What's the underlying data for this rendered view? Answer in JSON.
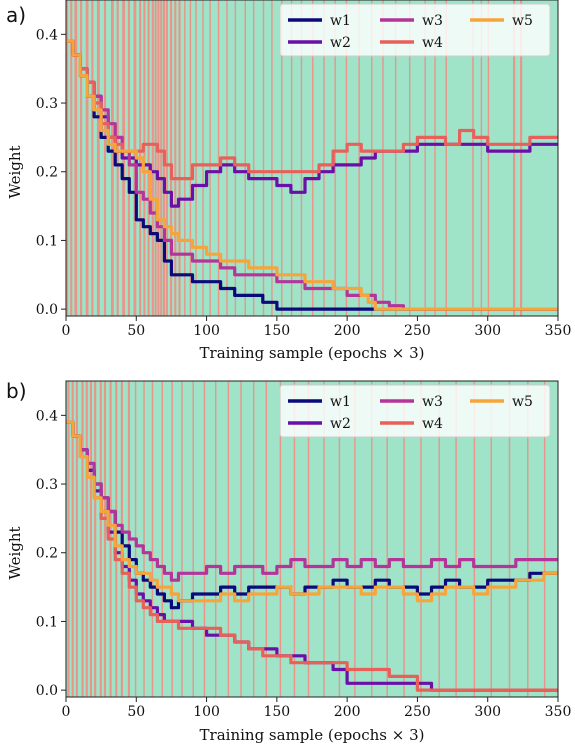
{
  "chart_data": [
    {
      "type": "line",
      "panel_label": "a)",
      "xlabel": "Training sample (epochs × 3)",
      "ylabel": "Weight",
      "xlim": [
        0,
        350
      ],
      "ylim": [
        -0.01,
        0.45
      ],
      "xticks": [
        0,
        50,
        100,
        150,
        200,
        250,
        300,
        350
      ],
      "yticks": [
        0.0,
        0.1,
        0.2,
        0.3,
        0.4
      ],
      "ytick_labels": [
        "0.0",
        "0.1",
        "0.2",
        "0.3",
        "0.4"
      ],
      "legend_position": "top-right",
      "background_colors": {
        "band_a": "#9fe3c9",
        "band_b": "#f5877f"
      },
      "background_band_b_starts": [
        0,
        3,
        6,
        10,
        14,
        18,
        22,
        27,
        32,
        36,
        40,
        44,
        48,
        52,
        55,
        58,
        61,
        63,
        65,
        67,
        69,
        71,
        74,
        77,
        80,
        84,
        88,
        92,
        97,
        102,
        108,
        114,
        120,
        127,
        133,
        140,
        146,
        153,
        160,
        167,
        175,
        183,
        191,
        199,
        208,
        217,
        225,
        234,
        244,
        255,
        262,
        270,
        289,
        295,
        300,
        318,
        323
      ],
      "background_band_b_widths": [
        1.5,
        1.5,
        2,
        1.5,
        2,
        1.5,
        2,
        1.5,
        2,
        1.5,
        2,
        1.5,
        2,
        1.5,
        1.5,
        1.5,
        1.5,
        1.5,
        1.5,
        1.5,
        1.5,
        1.5,
        1.5,
        1.5,
        1.5,
        1,
        1,
        1,
        1,
        1,
        1,
        1,
        1,
        1,
        1,
        1,
        1,
        1,
        1,
        1,
        1,
        1,
        1,
        1,
        1,
        1,
        1,
        1,
        1,
        1,
        1,
        1,
        1,
        1,
        1,
        1.5,
        1.5
      ],
      "series": [
        {
          "name": "w1",
          "color": "#0a0a7a",
          "x": [
            0,
            5,
            10,
            15,
            20,
            25,
            30,
            35,
            40,
            45,
            50,
            55,
            60,
            65,
            70,
            75,
            80,
            90,
            100,
            110,
            120,
            130,
            140,
            150,
            200,
            350
          ],
          "y": [
            0.39,
            0.37,
            0.34,
            0.31,
            0.28,
            0.25,
            0.23,
            0.21,
            0.19,
            0.17,
            0.13,
            0.12,
            0.11,
            0.1,
            0.07,
            0.05,
            0.05,
            0.04,
            0.04,
            0.03,
            0.02,
            0.02,
            0.01,
            0.0,
            0.0,
            0.0
          ]
        },
        {
          "name": "w2",
          "color": "#6a0fa8",
          "x": [
            0,
            5,
            10,
            15,
            20,
            25,
            30,
            35,
            40,
            45,
            50,
            55,
            60,
            65,
            70,
            75,
            80,
            90,
            100,
            110,
            120,
            130,
            140,
            150,
            160,
            170,
            180,
            190,
            200,
            210,
            220,
            230,
            240,
            250,
            260,
            270,
            280,
            290,
            300,
            310,
            320,
            330,
            340,
            350
          ],
          "y": [
            0.39,
            0.37,
            0.35,
            0.33,
            0.31,
            0.28,
            0.25,
            0.23,
            0.22,
            0.22,
            0.21,
            0.21,
            0.2,
            0.19,
            0.17,
            0.15,
            0.16,
            0.18,
            0.2,
            0.21,
            0.2,
            0.19,
            0.19,
            0.18,
            0.17,
            0.19,
            0.2,
            0.21,
            0.21,
            0.22,
            0.23,
            0.23,
            0.23,
            0.24,
            0.24,
            0.24,
            0.24,
            0.24,
            0.23,
            0.23,
            0.23,
            0.24,
            0.24,
            0.24
          ]
        },
        {
          "name": "w3",
          "color": "#b4359a",
          "x": [
            0,
            5,
            10,
            15,
            20,
            25,
            30,
            35,
            40,
            45,
            50,
            55,
            60,
            65,
            70,
            75,
            80,
            90,
            100,
            110,
            120,
            130,
            140,
            150,
            160,
            170,
            180,
            190,
            200,
            210,
            220,
            230,
            240,
            350
          ],
          "y": [
            0.39,
            0.37,
            0.35,
            0.33,
            0.31,
            0.29,
            0.27,
            0.25,
            0.23,
            0.21,
            0.17,
            0.16,
            0.14,
            0.12,
            0.1,
            0.08,
            0.08,
            0.07,
            0.07,
            0.06,
            0.05,
            0.05,
            0.05,
            0.04,
            0.04,
            0.03,
            0.03,
            0.03,
            0.02,
            0.02,
            0.01,
            0.005,
            0.0,
            0.0
          ]
        },
        {
          "name": "w4",
          "color": "#e8605a",
          "x": [
            0,
            5,
            10,
            15,
            20,
            25,
            30,
            35,
            40,
            45,
            50,
            55,
            60,
            65,
            70,
            75,
            80,
            90,
            100,
            110,
            120,
            130,
            140,
            150,
            160,
            170,
            180,
            190,
            200,
            210,
            220,
            230,
            240,
            250,
            260,
            270,
            280,
            290,
            300,
            310,
            320,
            330,
            340,
            350
          ],
          "y": [
            0.39,
            0.37,
            0.35,
            0.33,
            0.3,
            0.27,
            0.25,
            0.24,
            0.23,
            0.23,
            0.23,
            0.24,
            0.24,
            0.23,
            0.21,
            0.19,
            0.19,
            0.21,
            0.21,
            0.22,
            0.21,
            0.2,
            0.2,
            0.2,
            0.2,
            0.2,
            0.21,
            0.23,
            0.24,
            0.23,
            0.23,
            0.23,
            0.24,
            0.25,
            0.25,
            0.24,
            0.26,
            0.25,
            0.24,
            0.24,
            0.24,
            0.25,
            0.25,
            0.25
          ]
        },
        {
          "name": "w5",
          "color": "#f5a53a",
          "x": [
            0,
            5,
            10,
            15,
            20,
            25,
            30,
            35,
            40,
            45,
            50,
            55,
            60,
            65,
            70,
            75,
            80,
            90,
            100,
            110,
            120,
            130,
            140,
            150,
            160,
            170,
            180,
            190,
            200,
            210,
            215,
            220,
            350
          ],
          "y": [
            0.39,
            0.37,
            0.34,
            0.31,
            0.29,
            0.26,
            0.24,
            0.23,
            0.23,
            0.23,
            0.22,
            0.2,
            0.16,
            0.13,
            0.12,
            0.11,
            0.1,
            0.09,
            0.08,
            0.07,
            0.07,
            0.06,
            0.06,
            0.05,
            0.05,
            0.04,
            0.04,
            0.03,
            0.03,
            0.02,
            0.01,
            0.0,
            0.0
          ]
        }
      ]
    },
    {
      "type": "line",
      "panel_label": "b)",
      "xlabel": "Training sample (epochs × 3)",
      "ylabel": "Weight",
      "xlim": [
        0,
        350
      ],
      "ylim": [
        -0.01,
        0.45
      ],
      "xticks": [
        0,
        50,
        100,
        150,
        200,
        250,
        300,
        350
      ],
      "yticks": [
        0.0,
        0.1,
        0.2,
        0.3,
        0.4
      ],
      "ytick_labels": [
        "0.0",
        "0.1",
        "0.2",
        "0.3",
        "0.4"
      ],
      "legend_position": "top-right",
      "background_colors": {
        "band_a": "#9fe3c9",
        "band_b": "#f5877f"
      },
      "background_band_b_starts": [
        1,
        4,
        7,
        11,
        14,
        17,
        20,
        24,
        27,
        31,
        35,
        39,
        44,
        49,
        55,
        61,
        68,
        75,
        82,
        90,
        98,
        106,
        115,
        124,
        133,
        142,
        152,
        162,
        172,
        183,
        194,
        205,
        217,
        228,
        240,
        252,
        265,
        277,
        290,
        302,
        315,
        328,
        340
      ],
      "background_band_b_widths": [
        1.5,
        1.5,
        1.5,
        1.5,
        1.5,
        1.5,
        1.5,
        1.5,
        1.5,
        1.5,
        1.5,
        1.5,
        1.5,
        1,
        1,
        1,
        1,
        1,
        1,
        1,
        1,
        1,
        1,
        1,
        1,
        1,
        1,
        1,
        1,
        1,
        1,
        1,
        1,
        1,
        1,
        1,
        1,
        1,
        1,
        1,
        1,
        1,
        1
      ],
      "series": [
        {
          "name": "w1",
          "color": "#0a0a7a",
          "x": [
            0,
            5,
            10,
            15,
            20,
            25,
            30,
            35,
            40,
            45,
            50,
            55,
            60,
            65,
            70,
            75,
            80,
            90,
            100,
            110,
            120,
            130,
            140,
            150,
            160,
            170,
            180,
            190,
            200,
            210,
            220,
            230,
            240,
            250,
            260,
            270,
            280,
            290,
            300,
            310,
            320,
            330,
            340,
            350
          ],
          "y": [
            0.39,
            0.37,
            0.35,
            0.32,
            0.3,
            0.28,
            0.26,
            0.23,
            0.21,
            0.19,
            0.17,
            0.16,
            0.15,
            0.14,
            0.13,
            0.12,
            0.13,
            0.14,
            0.14,
            0.15,
            0.14,
            0.15,
            0.15,
            0.15,
            0.14,
            0.15,
            0.15,
            0.16,
            0.15,
            0.15,
            0.16,
            0.15,
            0.15,
            0.14,
            0.15,
            0.16,
            0.15,
            0.15,
            0.16,
            0.16,
            0.16,
            0.17,
            0.17,
            0.17
          ]
        },
        {
          "name": "w2",
          "color": "#6a0fa8",
          "x": [
            0,
            5,
            10,
            15,
            20,
            25,
            30,
            35,
            40,
            45,
            50,
            55,
            60,
            65,
            70,
            75,
            80,
            90,
            100,
            110,
            120,
            130,
            140,
            150,
            160,
            170,
            180,
            190,
            200,
            210,
            220,
            230,
            240,
            250,
            260,
            350
          ],
          "y": [
            0.39,
            0.37,
            0.35,
            0.32,
            0.29,
            0.26,
            0.23,
            0.2,
            0.18,
            0.16,
            0.14,
            0.13,
            0.12,
            0.11,
            0.1,
            0.1,
            0.1,
            0.09,
            0.08,
            0.08,
            0.07,
            0.06,
            0.06,
            0.05,
            0.05,
            0.04,
            0.04,
            0.03,
            0.01,
            0.01,
            0.01,
            0.01,
            0.01,
            0.01,
            0.0,
            0.0
          ]
        },
        {
          "name": "w3",
          "color": "#b4359a",
          "x": [
            0,
            5,
            10,
            15,
            20,
            25,
            30,
            35,
            40,
            45,
            50,
            55,
            60,
            65,
            70,
            75,
            80,
            90,
            100,
            110,
            120,
            130,
            140,
            150,
            160,
            170,
            180,
            190,
            200,
            210,
            220,
            230,
            240,
            250,
            260,
            270,
            280,
            290,
            300,
            310,
            320,
            330,
            340,
            350
          ],
          "y": [
            0.39,
            0.37,
            0.35,
            0.33,
            0.3,
            0.28,
            0.26,
            0.24,
            0.23,
            0.22,
            0.21,
            0.2,
            0.19,
            0.18,
            0.17,
            0.16,
            0.17,
            0.17,
            0.18,
            0.17,
            0.18,
            0.18,
            0.17,
            0.18,
            0.19,
            0.18,
            0.18,
            0.19,
            0.18,
            0.19,
            0.18,
            0.19,
            0.18,
            0.18,
            0.19,
            0.18,
            0.19,
            0.18,
            0.18,
            0.18,
            0.19,
            0.19,
            0.19,
            0.19
          ]
        },
        {
          "name": "w4",
          "color": "#e8605a",
          "x": [
            0,
            5,
            10,
            15,
            20,
            25,
            30,
            35,
            40,
            45,
            50,
            55,
            60,
            65,
            70,
            75,
            80,
            90,
            100,
            110,
            120,
            130,
            140,
            150,
            160,
            170,
            180,
            190,
            200,
            210,
            220,
            230,
            240,
            250,
            350
          ],
          "y": [
            0.39,
            0.37,
            0.34,
            0.31,
            0.28,
            0.25,
            0.22,
            0.19,
            0.17,
            0.15,
            0.13,
            0.12,
            0.11,
            0.1,
            0.1,
            0.1,
            0.09,
            0.09,
            0.09,
            0.08,
            0.07,
            0.06,
            0.05,
            0.05,
            0.04,
            0.04,
            0.04,
            0.04,
            0.03,
            0.03,
            0.03,
            0.02,
            0.02,
            0.0,
            0.0
          ]
        },
        {
          "name": "w5",
          "color": "#f5a53a",
          "x": [
            0,
            5,
            10,
            15,
            20,
            25,
            30,
            35,
            40,
            45,
            50,
            55,
            60,
            65,
            70,
            75,
            80,
            90,
            100,
            110,
            120,
            130,
            140,
            150,
            160,
            170,
            180,
            190,
            200,
            210,
            220,
            230,
            240,
            250,
            260,
            270,
            280,
            290,
            300,
            310,
            320,
            330,
            340,
            350
          ],
          "y": [
            0.39,
            0.37,
            0.34,
            0.31,
            0.28,
            0.26,
            0.24,
            0.21,
            0.19,
            0.18,
            0.17,
            0.17,
            0.16,
            0.15,
            0.15,
            0.14,
            0.13,
            0.13,
            0.13,
            0.14,
            0.13,
            0.14,
            0.14,
            0.15,
            0.14,
            0.14,
            0.15,
            0.15,
            0.15,
            0.14,
            0.15,
            0.15,
            0.14,
            0.13,
            0.14,
            0.15,
            0.15,
            0.14,
            0.15,
            0.15,
            0.16,
            0.16,
            0.17,
            0.17
          ]
        }
      ]
    }
  ]
}
